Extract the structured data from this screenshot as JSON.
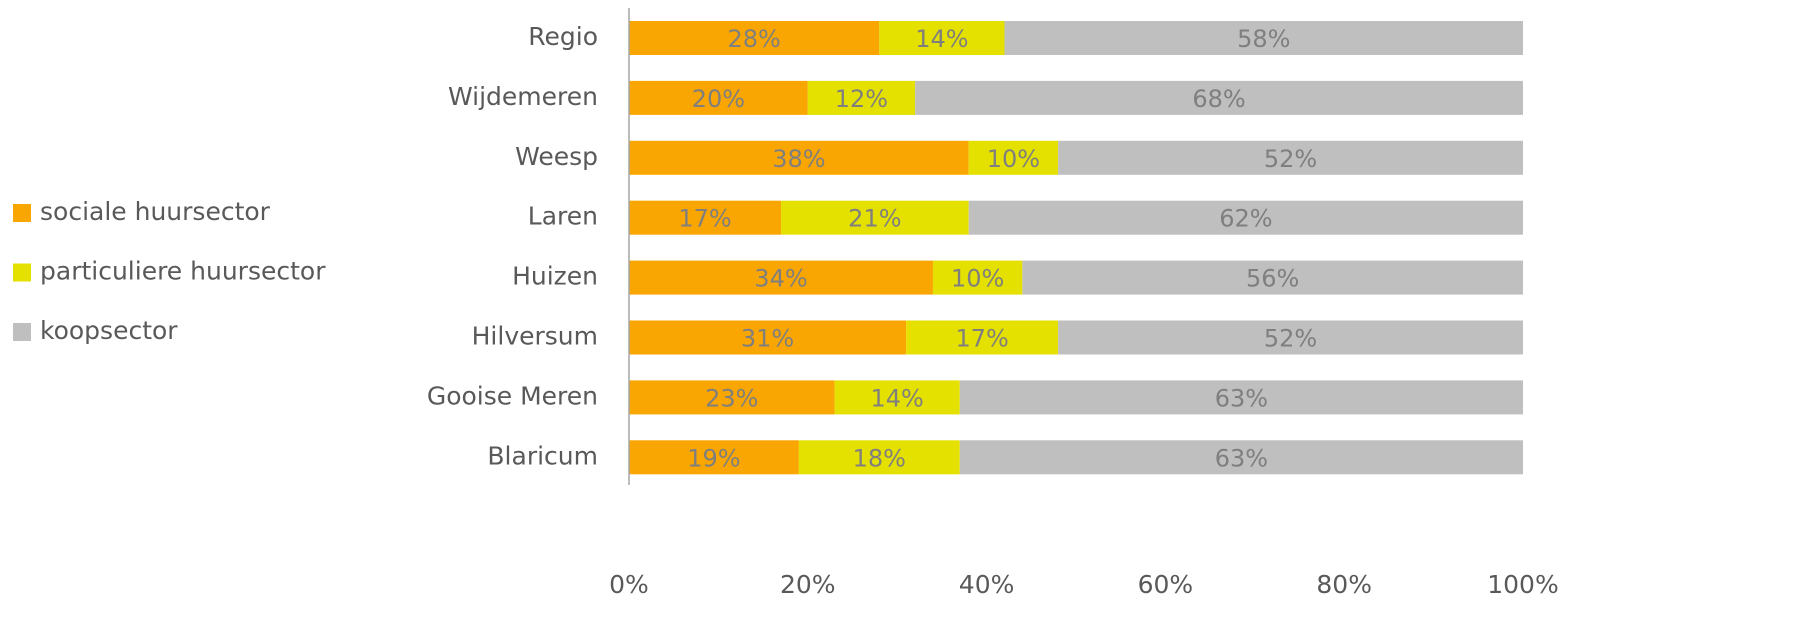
{
  "chart_data": {
    "type": "stacked-barh",
    "categories": [
      "Regio",
      "Wijdemeren",
      "Weesp",
      "Laren",
      "Huizen",
      "Hilversum",
      "Gooise Meren",
      "Blaricum"
    ],
    "series": [
      {
        "name": "sociale huursector",
        "color": "#f9a602",
        "values": [
          28,
          20,
          38,
          17,
          34,
          31,
          23,
          19
        ],
        "value_labels": [
          "28%",
          "20%",
          "38%",
          "17%",
          "34%",
          "31%",
          "23%",
          "19%"
        ]
      },
      {
        "name": "particuliere huursector",
        "color": "#e4e000",
        "values": [
          14,
          12,
          10,
          21,
          10,
          17,
          14,
          18
        ],
        "value_labels": [
          "14%",
          "12%",
          "10%",
          "21%",
          "10%",
          "17%",
          "14%",
          "18%"
        ]
      },
      {
        "name": "koopsector",
        "color": "#bfbfbf",
        "values": [
          58,
          68,
          52,
          62,
          56,
          52,
          63,
          63
        ],
        "value_labels": [
          "58%",
          "68%",
          "52%",
          "62%",
          "56%",
          "52%",
          "63%",
          "63%"
        ]
      }
    ],
    "xlim": [
      0,
      100
    ],
    "xticks": [
      {
        "value": 0,
        "label": "0%"
      },
      {
        "value": 20,
        "label": "20%"
      },
      {
        "value": 40,
        "label": "40%"
      },
      {
        "value": 60,
        "label": "60%"
      },
      {
        "value": 80,
        "label": "80%"
      },
      {
        "value": 100,
        "label": "100%"
      }
    ],
    "legend": "left"
  }
}
